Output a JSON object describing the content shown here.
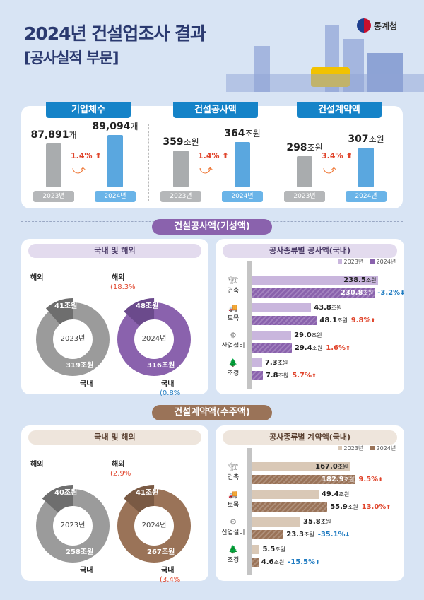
{
  "header": {
    "title": "2024년 건설업조사 결과",
    "subtitle": "[공사실적 부문]",
    "logo_text": "통계청"
  },
  "summary": [
    {
      "tab": "기업체수",
      "v2023": "87,891",
      "v2024": "89,094",
      "unit": "개",
      "pct": "1.4%",
      "dir": "up",
      "icon": "building-icon"
    },
    {
      "tab": "건설공사액",
      "v2023": "359",
      "v2024": "364",
      "unit": "조원",
      "pct": "1.4%",
      "dir": "up",
      "icon": "hard-hat-icon"
    },
    {
      "tab": "건설계약액",
      "v2023": "298",
      "v2024": "307",
      "unit": "조원",
      "pct": "3.4%",
      "dir": "up",
      "icon": "money-icon"
    }
  ],
  "year_labels": {
    "y2023": "2023년",
    "y2024": "2024년"
  },
  "colors": {
    "blue": "#1583c8",
    "purple": "#8a62ad",
    "purple_light": "#c9b6dd",
    "brown": "#9a7358",
    "brown_light": "#d9c8b6",
    "up": "#e0442b",
    "down": "#1f7bc1"
  },
  "sections": [
    {
      "band": "건설공사액(기성액)",
      "donut_title": "국내 및 해외",
      "bar_title": "공사종류별 공사액(국내)"
    },
    {
      "band": "건설계약액(수주액)",
      "donut_title": "국내 및 해외",
      "bar_title": "공사종류별 계약액(국내)"
    }
  ],
  "chart_data": [
    {
      "type": "pie",
      "title": "국내 및 해외",
      "unit": "조원",
      "charts": [
        {
          "year": "2023년",
          "domestic": 319,
          "overseas": 41,
          "domestic_label": "국내",
          "overseas_label": "해외",
          "domestic_text": "319조원",
          "overseas_text": "41조원"
        },
        {
          "year": "2024년",
          "domestic": 316,
          "overseas": 48,
          "domestic_label": "국내",
          "overseas_label": "해외",
          "domestic_text": "316조원",
          "overseas_text": "48조원",
          "domestic_change": "(0.8%",
          "domestic_dir": "down",
          "overseas_change": "(18.3%",
          "overseas_dir": "up"
        }
      ]
    },
    {
      "type": "bar",
      "title": "공사종류별 공사액(국내)",
      "unit": "조원",
      "categories": [
        "건축",
        "토목",
        "산업설비",
        "조경"
      ],
      "series": [
        {
          "name": "2023년",
          "values": [
            238.5,
            43.8,
            29.0,
            7.3
          ]
        },
        {
          "name": "2024년",
          "values": [
            230.8,
            48.1,
            29.4,
            7.8
          ]
        }
      ],
      "changes": [
        "-3.2%",
        "9.8%",
        "1.6%",
        "5.7%"
      ],
      "change_dirs": [
        "down",
        "up",
        "up",
        "up"
      ]
    },
    {
      "type": "pie",
      "title": "국내 및 해외",
      "unit": "조원",
      "charts": [
        {
          "year": "2023년",
          "domestic": 258,
          "overseas": 40,
          "domestic_label": "국내",
          "overseas_label": "해외",
          "domestic_text": "258조원",
          "overseas_text": "40조원"
        },
        {
          "year": "2024년",
          "domestic": 267,
          "overseas": 41,
          "domestic_label": "국내",
          "overseas_label": "해외",
          "domestic_text": "267조원",
          "overseas_text": "41조원",
          "domestic_change": "(3.4%",
          "domestic_dir": "up",
          "overseas_change": "(2.9%",
          "overseas_dir": "up"
        }
      ]
    },
    {
      "type": "bar",
      "title": "공사종류별 계약액(국내)",
      "unit": "조원",
      "categories": [
        "건축",
        "토목",
        "산업설비",
        "조경"
      ],
      "series": [
        {
          "name": "2023년",
          "values": [
            167.0,
            49.4,
            35.8,
            5.5
          ]
        },
        {
          "name": "2024년",
          "values": [
            182.9,
            55.9,
            23.3,
            4.6
          ]
        }
      ],
      "changes": [
        "9.5%",
        "13.0%",
        "-35.1%",
        "-15.5%"
      ],
      "change_dirs": [
        "up",
        "up",
        "down",
        "down"
      ]
    }
  ]
}
